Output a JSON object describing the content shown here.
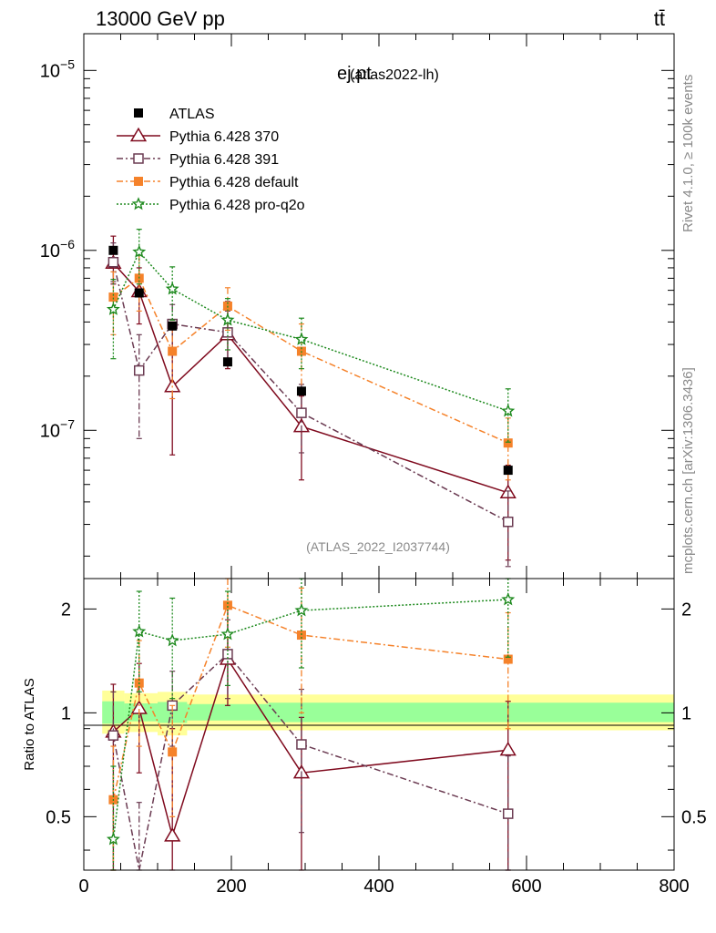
{
  "header": {
    "left": "13000 GeV pp",
    "right": "tt̄"
  },
  "side_labels": {
    "rivet": "Rivet 4.1.0, ≥ 100k events",
    "mcplots": "mcplots.cern.ch [arXiv:1306.3436]"
  },
  "chart_data": [
    {
      "type": "scatter",
      "panel": "main",
      "title": "ej.pt",
      "subtitle": "(atlas2022-lh)",
      "watermark": "(ATLAS_2022_I2037744)",
      "xlabel": "",
      "ylabel": "",
      "xlim": [
        0,
        800
      ],
      "yscale": "log",
      "ylim": [
        1.5e-08,
        1.6e-05
      ],
      "ytick_labels": [
        {
          "value": 1e-07,
          "base": "10",
          "exp": "−7"
        },
        {
          "value": 1e-06,
          "base": "10",
          "exp": "−6"
        },
        {
          "value": 1e-05,
          "base": "10",
          "exp": "−5"
        }
      ],
      "legend_position": "top-left",
      "series": [
        {
          "name": "ATLAS",
          "color": "#000000",
          "marker": "filled-square",
          "line": "none",
          "x": [
            40,
            75,
            120,
            195,
            295,
            575
          ],
          "y": [
            1e-06,
            5.8e-07,
            3.8e-07,
            2.4e-07,
            1.65e-07,
            6e-08
          ],
          "yerr_lo": [
            1e-06,
            5.8e-07,
            3.8e-07,
            2.4e-07,
            1.65e-07,
            6e-08
          ],
          "yerr_hi": [
            1e-06,
            5.8e-07,
            3.8e-07,
            2.4e-07,
            1.65e-07,
            6e-08
          ]
        },
        {
          "name": "Pythia 6.428 370",
          "color": "#7f0a1e",
          "marker": "open-triangle",
          "line": "solid",
          "x": [
            40,
            75,
            120,
            195,
            295,
            575
          ],
          "y": [
            8.5e-07,
            5.9e-07,
            1.75e-07,
            3.4e-07,
            1.05e-07,
            4.5e-08
          ],
          "yerr_lo": [
            6.5e-07,
            3.9e-07,
            7.3e-08,
            2.2e-07,
            5.3e-08,
            1.9e-08
          ],
          "yerr_hi": [
            1.2e-06,
            8e-07,
            3.8e-07,
            5.2e-07,
            1.55e-07,
            6.4e-08
          ]
        },
        {
          "name": "Pythia 6.428 391",
          "color": "#6b3b52",
          "marker": "open-square",
          "line": "dashdot",
          "x": [
            40,
            75,
            120,
            195,
            295,
            575
          ],
          "y": [
            8.6e-07,
            2.15e-07,
            3.9e-07,
            3.5e-07,
            1.25e-07,
            3.1e-08
          ],
          "yerr_lo": [
            6.7e-07,
            9e-08,
            2.8e-07,
            2.4e-07,
            7.5e-08,
            1.75e-08
          ],
          "yerr_hi": [
            1.1e-06,
            3.4e-07,
            5e-07,
            4.6e-07,
            1.8e-07,
            4.6e-08
          ]
        },
        {
          "name": "Pythia 6.428 default",
          "color": "#f5822a",
          "marker": "filled-square",
          "line": "dashdot",
          "x": [
            40,
            75,
            120,
            195,
            295,
            575
          ],
          "y": [
            5.5e-07,
            7e-07,
            2.75e-07,
            4.9e-07,
            2.75e-07,
            8.5e-08
          ],
          "yerr_lo": [
            3.4e-07,
            4.6e-07,
            1.5e-07,
            3.6e-07,
            1.6e-07,
            5.3e-08
          ],
          "yerr_hi": [
            7.6e-07,
            9.4e-07,
            4e-07,
            6.2e-07,
            3.9e-07,
            1.17e-07
          ]
        },
        {
          "name": "Pythia 6.428 pro-q2o",
          "color": "#1e8a1e",
          "marker": "open-star",
          "line": "dotted",
          "x": [
            40,
            75,
            120,
            195,
            295,
            575
          ],
          "y": [
            4.7e-07,
            9.8e-07,
            6.1e-07,
            4.1e-07,
            3.2e-07,
            1.28e-07
          ],
          "yerr_lo": [
            2.5e-07,
            6.5e-07,
            4.1e-07,
            2.8e-07,
            2.2e-07,
            8.6e-08
          ],
          "yerr_hi": [
            6.9e-07,
            1.31e-06,
            8.1e-07,
            5.4e-07,
            4.2e-07,
            1.7e-07
          ]
        }
      ]
    },
    {
      "type": "scatter",
      "panel": "ratio",
      "ylabel": "Ratio to ATLAS",
      "xlim": [
        0,
        800
      ],
      "yscale": "log",
      "ylim": [
        0.35,
        2.45
      ],
      "xticks": [
        0,
        200,
        400,
        600,
        800
      ],
      "ytick_labels": [
        {
          "value": 0.5,
          "label": "0.5"
        },
        {
          "value": 1,
          "label": "1"
        },
        {
          "value": 2,
          "label": "2"
        }
      ],
      "bands": {
        "x_edges": [
          25,
          55,
          100,
          140,
          250,
          350,
          800
        ],
        "inner_lo": [
          0.93,
          0.945,
          0.935,
          0.95,
          0.94,
          0.94
        ],
        "inner_hi": [
          1.08,
          1.065,
          1.075,
          1.06,
          1.07,
          1.07
        ],
        "outer_lo": [
          0.87,
          0.88,
          0.86,
          0.89,
          0.89,
          0.89
        ],
        "outer_hi": [
          1.16,
          1.14,
          1.15,
          1.13,
          1.13,
          1.13
        ],
        "inner_color": "#99ff99",
        "outer_color": "#ffff99"
      },
      "series": [
        {
          "name": "Pythia 6.428 370",
          "color": "#7f0a1e",
          "marker": "open-triangle",
          "line": "solid",
          "x": [
            40,
            75,
            120,
            195,
            295,
            575
          ],
          "y": [
            0.88,
            1.03,
            0.44,
            1.43,
            0.67,
            0.78
          ],
          "yerr_lo": [
            0.35,
            0.67,
            0.2,
            1.05,
            0.35,
            0.35
          ],
          "yerr_hi": [
            1.21,
            1.39,
            0.9,
            2.1,
            0.97,
            1.08
          ]
        },
        {
          "name": "Pythia 6.428 391",
          "color": "#6b3b52",
          "marker": "open-square",
          "line": "dashdot",
          "x": [
            40,
            75,
            120,
            195,
            295,
            575
          ],
          "y": [
            0.86,
            0.33,
            1.05,
            1.48,
            0.81,
            0.51
          ],
          "yerr_lo": [
            0.35,
            0.2,
            0.8,
            1.1,
            0.45,
            0.35
          ],
          "yerr_hi": [
            1.15,
            0.55,
            1.32,
            1.86,
            1.17,
            0.75
          ]
        },
        {
          "name": "Pythia 6.428 default",
          "color": "#f5822a",
          "marker": "filled-square",
          "line": "dashdot",
          "x": [
            40,
            75,
            120,
            195,
            295,
            575
          ],
          "y": [
            0.56,
            1.22,
            0.77,
            2.05,
            1.68,
            1.43
          ],
          "yerr_lo": [
            0.35,
            0.8,
            0.5,
            1.55,
            1.0,
            0.9
          ],
          "yerr_hi": [
            0.8,
            1.62,
            1.05,
            2.45,
            2.3,
            1.95
          ]
        },
        {
          "name": "Pythia 6.428 pro-q2o",
          "color": "#1e8a1e",
          "marker": "open-star",
          "line": "dotted",
          "x": [
            40,
            75,
            120,
            195,
            295,
            575
          ],
          "y": [
            0.43,
            1.72,
            1.62,
            1.69,
            1.98,
            2.13
          ],
          "yerr_lo": [
            0.35,
            1.15,
            1.1,
            1.2,
            1.35,
            1.45
          ],
          "yerr_hi": [
            0.7,
            2.25,
            2.15,
            2.25,
            2.45,
            2.45
          ]
        }
      ]
    }
  ]
}
